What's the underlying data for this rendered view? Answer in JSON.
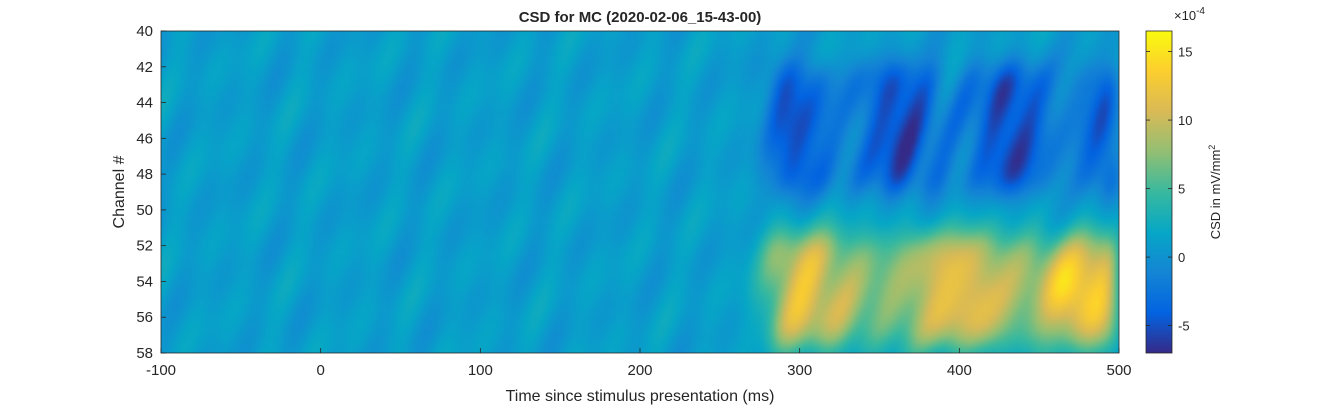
{
  "chart_data": {
    "type": "heatmap",
    "title": "CSD for MC (2020-02-06_15-43-00)",
    "xlabel": "Time since stimulus presentation (ms)",
    "ylabel": "Channel #",
    "xlim": [
      -100,
      500
    ],
    "ylim": [
      40,
      58
    ],
    "y_reversed": true,
    "xticks": [
      -100,
      0,
      100,
      200,
      300,
      400,
      500
    ],
    "yticks": [
      40,
      42,
      44,
      46,
      48,
      50,
      52,
      54,
      56,
      58
    ],
    "colormap": "parula",
    "colorbar": {
      "label_main": "CSD in mV/mm",
      "label_sup": "2",
      "exponent_base": "×10",
      "exponent_power": "-4",
      "range": [
        -7,
        16.5
      ],
      "ticks": [
        -5,
        0,
        5,
        10,
        15
      ]
    },
    "regions": [
      {
        "name": "sink",
        "t_start": 280,
        "t_end": 500,
        "ch_start": 42,
        "ch_end": 49,
        "value": -5
      },
      {
        "name": "source",
        "t_start": 280,
        "t_end": 500,
        "ch_start": 51.5,
        "ch_end": 57.5,
        "value": 11
      },
      {
        "name": "peak",
        "t": 468,
        "ch": 54.5,
        "value": 16
      }
    ],
    "baseline_value": 1
  }
}
